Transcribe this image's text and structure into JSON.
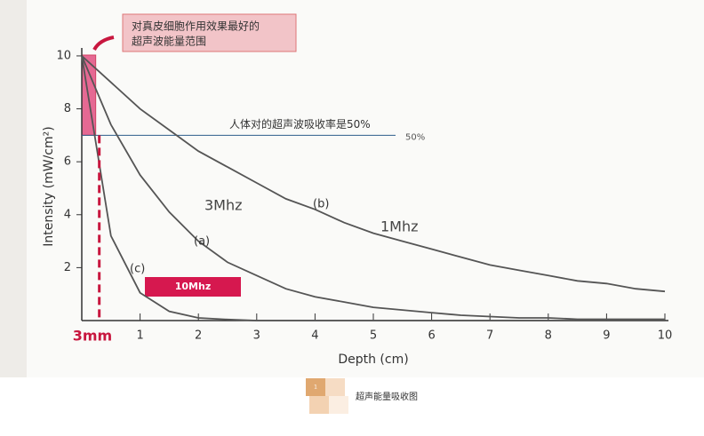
{
  "chart_data": {
    "type": "line",
    "y_label": "Intensity (mW/cm²)",
    "x_label": "Depth (cm)",
    "x": [
      0,
      0.5,
      1,
      1.5,
      2,
      2.5,
      3,
      3.5,
      4,
      4.5,
      5,
      5.5,
      6,
      6.5,
      7,
      7.5,
      8,
      8.5,
      9,
      9.5,
      10
    ],
    "series": [
      {
        "name": "(b)",
        "color": "#555",
        "values": [
          10,
          9.0,
          8.0,
          7.2,
          6.4,
          5.8,
          5.2,
          4.6,
          4.2,
          3.7,
          3.3,
          3.0,
          2.7,
          2.4,
          2.1,
          1.9,
          1.7,
          1.5,
          1.4,
          1.2,
          1.1
        ]
      },
      {
        "name": "(a)",
        "color": "#555",
        "values": [
          10,
          7.4,
          5.5,
          4.1,
          3.0,
          2.2,
          1.7,
          1.2,
          0.9,
          0.7,
          0.5,
          0.4,
          0.3,
          0.2,
          0.15,
          0.1,
          0.1,
          0.05,
          0.05,
          0.05,
          0.05
        ]
      },
      {
        "name": "(c)",
        "color": "#555",
        "values": [
          10,
          3.2,
          1.05,
          0.35,
          0.1,
          0.04,
          0,
          0,
          0,
          0,
          0,
          0,
          0,
          0,
          0,
          0,
          0,
          0,
          0,
          0,
          0
        ]
      }
    ],
    "xlim": [
      0,
      10
    ],
    "ylim": [
      0,
      10.3
    ],
    "xticks": [
      1,
      2,
      3,
      4,
      5,
      6,
      7,
      8,
      9,
      10
    ],
    "yticks": [
      2,
      4,
      6,
      8,
      10
    ],
    "reference_line": {
      "value": 7,
      "label": "人体对的超声波吸收率是50%",
      "end_label": "50%"
    },
    "depth_marker": {
      "value": 0.3,
      "label": "3mm"
    },
    "callout": [
      "对真皮细胞作用效果最好的",
      "超声波能量范围"
    ],
    "frequency_labels": [
      "3Mhz",
      "1Mhz",
      "10Mhz"
    ],
    "caption": {
      "icon": "1",
      "text": "超声能量吸收图"
    }
  }
}
